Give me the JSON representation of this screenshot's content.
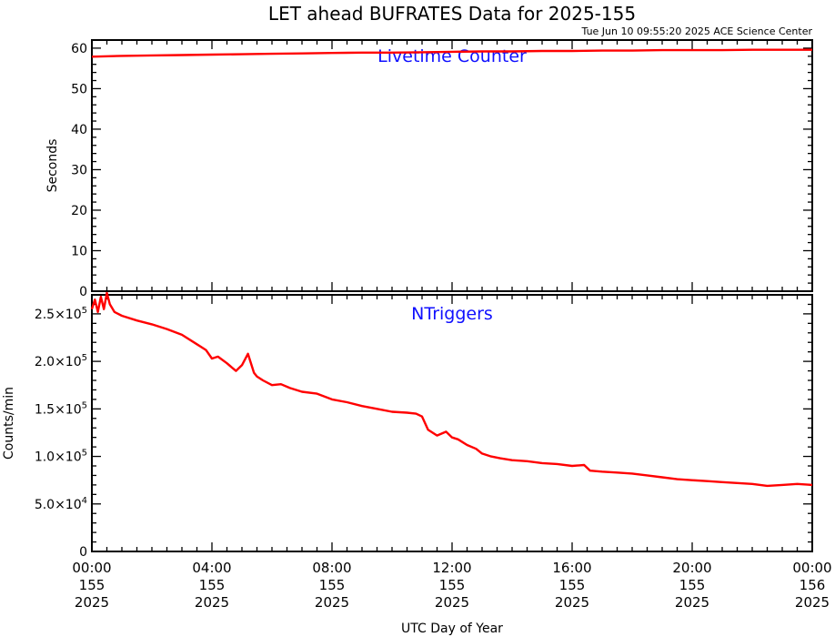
{
  "title": "LET ahead BUFRATES Data for 2025-155",
  "timestamp": "Tue Jun 10 09:55:20 2025 ACE Science Center",
  "xlabel": "UTC Day of Year",
  "colors": {
    "line": "#ff0000",
    "panel_label": "#1010ff",
    "axes": "#000000",
    "background": "#ffffff"
  },
  "x_ticks": [
    {
      "hm": "00:00",
      "doy": "155",
      "yr": "2025"
    },
    {
      "hm": "04:00",
      "doy": "155",
      "yr": "2025"
    },
    {
      "hm": "08:00",
      "doy": "155",
      "yr": "2025"
    },
    {
      "hm": "12:00",
      "doy": "155",
      "yr": "2025"
    },
    {
      "hm": "16:00",
      "doy": "155",
      "yr": "2025"
    },
    {
      "hm": "20:00",
      "doy": "155",
      "yr": "2025"
    },
    {
      "hm": "00:00",
      "doy": "156",
      "yr": "2025"
    }
  ],
  "chart_data": [
    {
      "type": "line",
      "panel_label": "Livetime Counter",
      "ylabel": "Seconds",
      "xlim_hours": [
        0,
        24
      ],
      "ylim": [
        0,
        62
      ],
      "yticks": [
        0,
        10,
        20,
        30,
        40,
        50,
        60
      ],
      "ytick_labels": [
        "0",
        "10",
        "20",
        "30",
        "40",
        "50",
        "60"
      ],
      "series": [
        {
          "x_hours": [
            0,
            1,
            2,
            3,
            4,
            5,
            6,
            7,
            8,
            9,
            10,
            11,
            12,
            13,
            14,
            15,
            16,
            17,
            18,
            19,
            20,
            21,
            22,
            23,
            24
          ],
          "values": [
            57.9,
            58.1,
            58.2,
            58.3,
            58.4,
            58.5,
            58.6,
            58.7,
            58.8,
            58.9,
            58.9,
            59.0,
            59.1,
            59.2,
            59.2,
            59.3,
            59.3,
            59.4,
            59.4,
            59.5,
            59.5,
            59.5,
            59.6,
            59.6,
            59.6
          ]
        }
      ]
    },
    {
      "type": "line",
      "panel_label": "NTriggers",
      "ylabel": "Counts/min",
      "xlim_hours": [
        0,
        24
      ],
      "ylim": [
        0,
        270000
      ],
      "yticks": [
        0,
        50000,
        100000,
        150000,
        200000,
        250000
      ],
      "ytick_labels": [
        {
          "mant": "0",
          "exp": ""
        },
        {
          "mant": "5.0×10",
          "exp": "4"
        },
        {
          "mant": "1.0×10",
          "exp": "5"
        },
        {
          "mant": "1.5×10",
          "exp": "5"
        },
        {
          "mant": "2.0×10",
          "exp": "5"
        },
        {
          "mant": "2.5×10",
          "exp": "5"
        }
      ],
      "series": [
        {
          "x_hours": [
            0,
            0.1,
            0.2,
            0.3,
            0.4,
            0.5,
            0.6,
            0.75,
            1.0,
            1.5,
            2.0,
            2.5,
            3.0,
            3.5,
            3.8,
            4.0,
            4.2,
            4.5,
            4.8,
            5.0,
            5.2,
            5.4,
            5.5,
            5.7,
            6.0,
            6.3,
            6.6,
            7.0,
            7.5,
            8.0,
            8.5,
            9.0,
            9.5,
            10.0,
            10.5,
            10.8,
            11.0,
            11.2,
            11.5,
            11.8,
            12.0,
            12.2,
            12.5,
            12.8,
            13.0,
            13.3,
            13.6,
            14.0,
            14.5,
            15.0,
            15.5,
            16.0,
            16.4,
            16.6,
            17.0,
            17.5,
            18.0,
            18.5,
            19.0,
            19.5,
            20.0,
            20.5,
            21.0,
            21.5,
            22.0,
            22.5,
            23.0,
            23.5,
            24.0
          ],
          "values": [
            255000,
            265000,
            252000,
            268000,
            255000,
            272000,
            260000,
            252000,
            248000,
            243000,
            239000,
            234000,
            228000,
            218000,
            212000,
            203000,
            205000,
            198000,
            190000,
            196000,
            208000,
            188000,
            184000,
            180000,
            175000,
            176000,
            172000,
            168000,
            166000,
            160000,
            157000,
            153000,
            150000,
            147000,
            146000,
            145000,
            142000,
            128000,
            122000,
            126000,
            120000,
            118000,
            112000,
            108000,
            103000,
            100000,
            98000,
            96000,
            95000,
            93000,
            92000,
            90000,
            91000,
            85000,
            84000,
            83000,
            82000,
            80000,
            78000,
            76000,
            75000,
            74000,
            73000,
            72000,
            71000,
            69000,
            70000,
            71000,
            70000
          ]
        }
      ]
    }
  ]
}
